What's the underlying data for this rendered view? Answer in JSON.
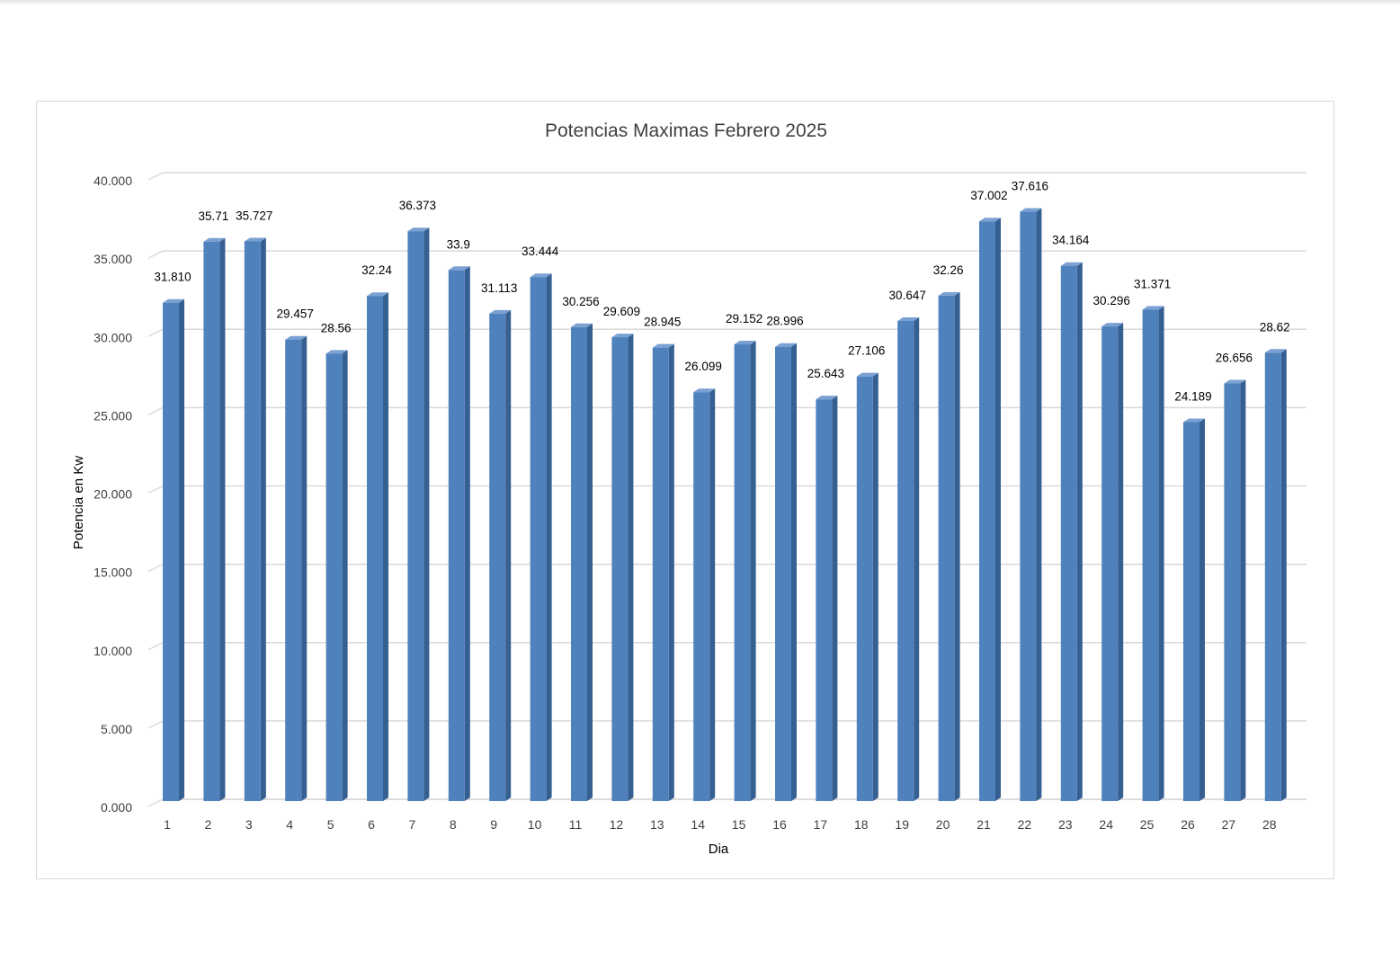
{
  "chart_data": {
    "type": "bar",
    "title": "Potencias Maximas Febrero 2025",
    "xlabel": "Dia",
    "ylabel": "Potencia en Kw",
    "ylim": [
      0,
      40
    ],
    "y_ticks": [
      "0.000",
      "5.000",
      "10.000",
      "15.000",
      "20.000",
      "25.000",
      "30.000",
      "35.000",
      "40.000"
    ],
    "grid": true,
    "legend": "none",
    "categories": [
      "1",
      "2",
      "3",
      "4",
      "5",
      "6",
      "7",
      "8",
      "9",
      "10",
      "11",
      "12",
      "13",
      "14",
      "15",
      "16",
      "17",
      "18",
      "19",
      "20",
      "21",
      "22",
      "23",
      "24",
      "25",
      "26",
      "27",
      "28"
    ],
    "values": [
      31.81,
      35.71,
      35.727,
      29.457,
      28.56,
      32.24,
      36.373,
      33.9,
      31.113,
      33.444,
      30.256,
      29.609,
      28.945,
      26.099,
      29.152,
      28.996,
      25.643,
      27.106,
      30.647,
      32.26,
      37.002,
      37.616,
      34.164,
      30.296,
      31.371,
      24.189,
      26.656,
      28.62
    ],
    "data_labels": [
      "31.810",
      "35.71",
      "35.727",
      "29.457",
      "28.56",
      "32.24",
      "36.373",
      "33.9",
      "31.113",
      "33.444",
      "30.256",
      "29.609",
      "28.945",
      "26.099",
      "29.152",
      "28.996",
      "25.643",
      "27.106",
      "30.647",
      "32.26",
      "37.002",
      "37.616",
      "34.164",
      "30.296",
      "31.371",
      "24.189",
      "26.656",
      "28.62"
    ],
    "colors": {
      "bar_front": "#4f81bd",
      "bar_side": "#365f92",
      "bar_top": "#7aa1d2",
      "grid": "#d9d9d9",
      "floor": "#d0d0d0"
    }
  }
}
